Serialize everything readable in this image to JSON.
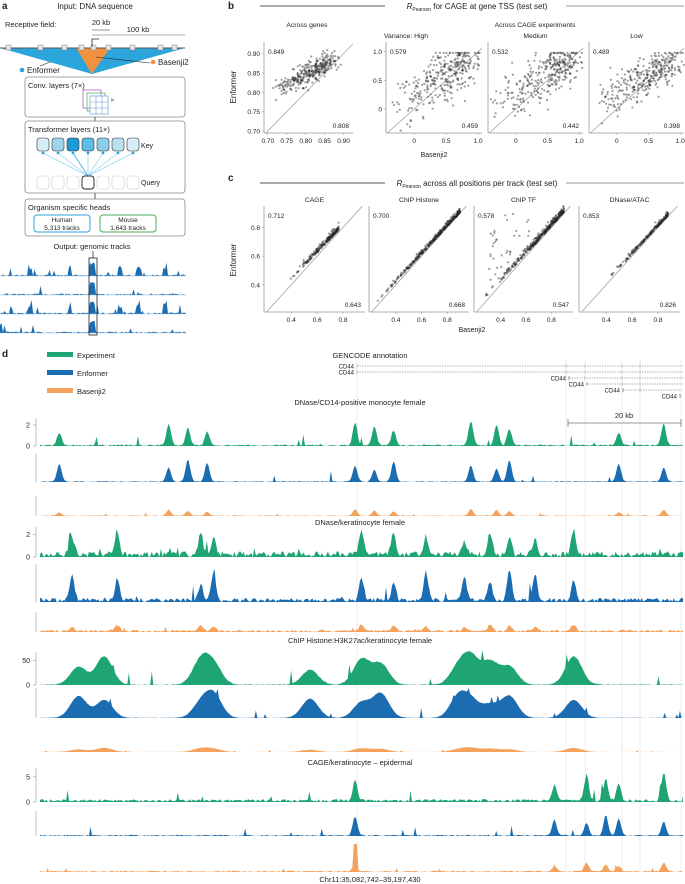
{
  "colors": {
    "experiment": "#1fa571",
    "enformer": "#1b6cb1",
    "basenji2": "#f5a25c",
    "receptive_enformer": "#2ca5dc",
    "receptive_basenji2": "#f0923f"
  },
  "panel_a": {
    "label": "a",
    "input": "Input: DNA sequence",
    "receptive_field": "Receptive field:",
    "scale_20": "20 kb",
    "scale_100": "100 kb",
    "enformer": "Enformer",
    "basenji2": "Basenji2",
    "conv": "Conv. layers (7×)",
    "transformer": "Transformer layers (11×)",
    "key": "Key",
    "query": "Query",
    "heads": "Organism specific heads",
    "human": "Human",
    "human_tracks": "5,313 tracks",
    "mouse": "Mouse",
    "mouse_tracks": "1,643 tracks",
    "output": "Output: genomic tracks"
  },
  "chart_data": [
    {
      "panel": "b",
      "type": "scatter",
      "title": "R_Pearson for CAGE at gene TSS (test set)",
      "title_main": "R",
      "title_sub": "Pearson",
      "title_rest": " for CAGE at gene TSS (test set)",
      "xlabel": "Basenji2",
      "ylabel": "Enformer",
      "group_labels": [
        "Across genes",
        "Across CAGE experiments"
      ],
      "subplots": [
        {
          "title": "",
          "enformer": "0.849",
          "basenji2": "0.808",
          "xlim": [
            0.69,
            0.925
          ],
          "ylim": [
            0.695,
            0.93
          ],
          "xticks": [
            "0.70",
            "0.75",
            "0.80",
            "0.85",
            "0.90"
          ],
          "yticks": [
            "0.70",
            "0.75",
            "0.80",
            "0.85",
            "0.90"
          ]
        },
        {
          "title": "Variance: High",
          "enformer": "0.579",
          "basenji2": "0.459",
          "xlim": [
            -0.44,
            1.06
          ],
          "ylim": [
            -0.42,
            1.17
          ],
          "xticks": [
            "0",
            "0.5",
            "1.0"
          ],
          "yticks": [
            "0",
            "0.5",
            "1.0"
          ]
        },
        {
          "title": "Medium",
          "enformer": "0.532",
          "basenji2": "0.442",
          "xlim": [
            -0.44,
            1.06
          ],
          "ylim": [
            -0.42,
            1.17
          ],
          "xticks": [
            "0",
            "0.5",
            "1.0"
          ],
          "yticks": []
        },
        {
          "title": "Low",
          "enformer": "0.489",
          "basenji2": "0.398",
          "xlim": [
            -0.44,
            1.06
          ],
          "ylim": [
            -0.42,
            1.17
          ],
          "xticks": [
            "0",
            "0.5",
            "1.0"
          ],
          "yticks": []
        }
      ]
    },
    {
      "panel": "c",
      "type": "scatter",
      "title": "R_Pearson across all positions per track (test set)",
      "title_main": "R",
      "title_sub": "Pearson",
      "title_rest": " across all positions per track (test set)",
      "xlabel": "Basenji2",
      "ylabel": "Enformer",
      "subplots": [
        {
          "title": "CAGE",
          "enformer": "0.712",
          "basenji2": "0.643",
          "xlim": [
            0.19,
            0.97
          ],
          "ylim": [
            0.21,
            0.95
          ],
          "xticks": [
            "0.4",
            "0.6",
            "0.8"
          ],
          "yticks": [
            "0.4",
            "0.6",
            "0.8"
          ]
        },
        {
          "title": "ChIP Histone",
          "enformer": "0.700",
          "basenji2": "0.668",
          "xlim": [
            0.19,
            0.97
          ],
          "ylim": [
            0.21,
            0.95
          ],
          "xticks": [
            "0.4",
            "0.6",
            "0.8"
          ],
          "yticks": []
        },
        {
          "title": "ChIP TF",
          "enformer": "0.578",
          "basenji2": "0.547",
          "xlim": [
            0.19,
            0.97
          ],
          "ylim": [
            0.21,
            0.95
          ],
          "xticks": [
            "0.4",
            "0.6",
            "0.8"
          ],
          "yticks": []
        },
        {
          "title": "DNase/ATAC",
          "enformer": "0.853",
          "basenji2": "0.826",
          "xlim": [
            0.19,
            0.97
          ],
          "ylim": [
            0.21,
            0.95
          ],
          "xticks": [
            "0.4",
            "0.6",
            "0.8"
          ],
          "yticks": []
        }
      ]
    },
    {
      "panel": "d",
      "type": "area",
      "legend": [
        "Experiment",
        "Enformer",
        "Basenji2"
      ],
      "gencode_title": "GENCODE annotation",
      "gene": "CD44",
      "scale_bar": "20 kb",
      "xlabel": "Chr11:35,082,742–35,197,430",
      "tracks": [
        {
          "title": "DNase/CD14-positive monocyte female",
          "yticks": [
            "0",
            "2"
          ]
        },
        {
          "title": "DNase/keratinocyte female",
          "yticks": [
            "0",
            "2"
          ]
        },
        {
          "title": "ChIP Histone:H3K27ac/keratinocyte female",
          "yticks": [
            "0",
            "50"
          ]
        },
        {
          "title": "CAGE/keratinocyte – epidermal",
          "yticks": [
            "0",
            "5"
          ]
        }
      ]
    }
  ]
}
